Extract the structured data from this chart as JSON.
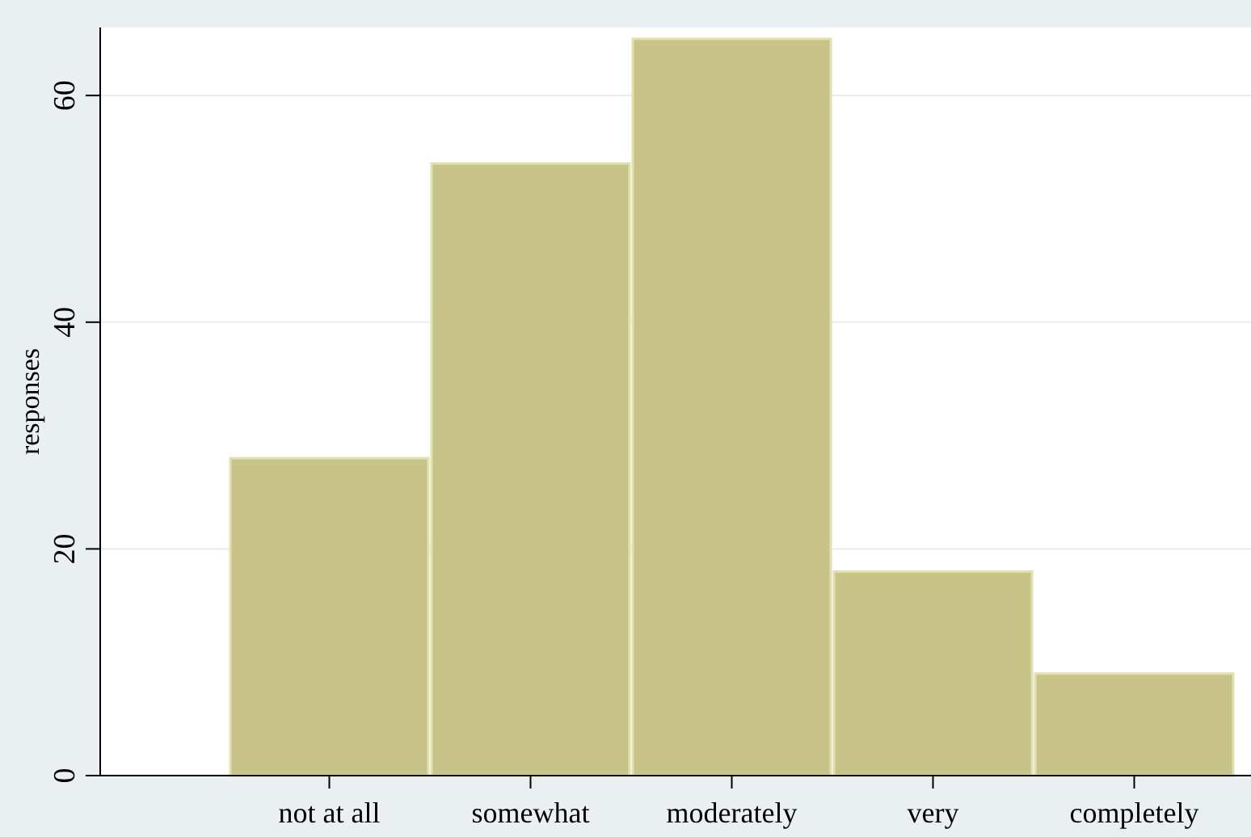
{
  "chart_data": {
    "type": "bar",
    "ylabel": "responses",
    "categories": [
      null,
      "not at all",
      "somewhat",
      "moderately",
      "very",
      "completely"
    ],
    "values": [
      null,
      28,
      54,
      65,
      18,
      9
    ],
    "color": "#c8c388",
    "ylim": [
      0,
      66
    ],
    "yticks": [
      0,
      20,
      40,
      60
    ],
    "grid": "y"
  }
}
